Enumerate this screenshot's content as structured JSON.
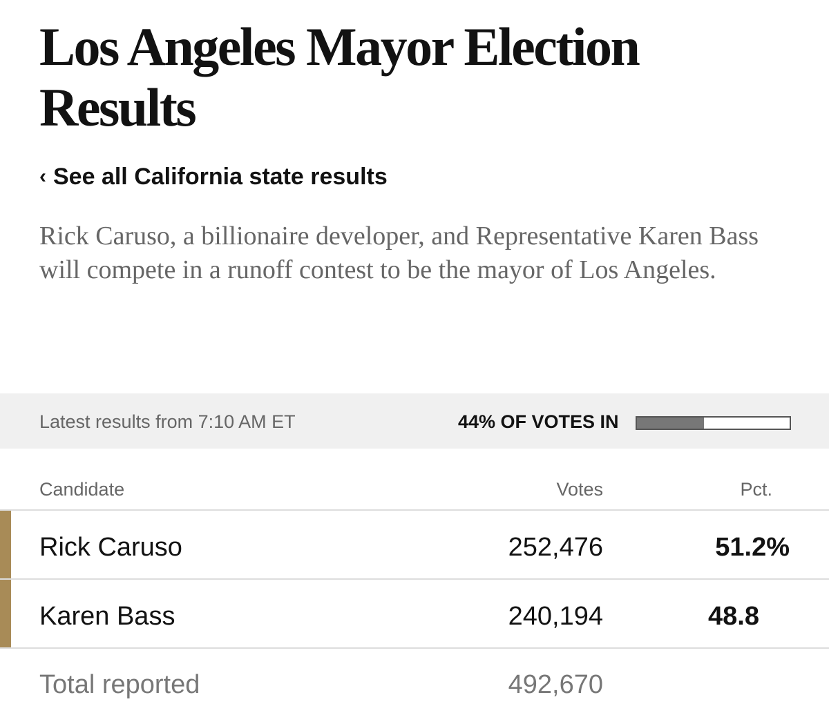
{
  "title": "Los Angeles Mayor Election Results",
  "back_link": {
    "chevron": "‹",
    "label": "See all California state results"
  },
  "summary": "Rick Caruso, a billionaire developer, and Representative Karen Bass will compete in a runoff contest to be the mayor of Los Angeles.",
  "status": {
    "updated": "Latest results from 7:10 AM ET",
    "votes_in_label": "44% of votes in",
    "votes_in_fraction": 0.44
  },
  "table": {
    "headers": {
      "candidate": "Candidate",
      "votes": "Votes",
      "pct": "Pct."
    },
    "rows": [
      {
        "name": "Rick Caruso",
        "votes": "252,476",
        "pct": "51.2%"
      },
      {
        "name": "Karen Bass",
        "votes": "240,194",
        "pct": "48.8"
      }
    ],
    "total": {
      "label": "Total reported",
      "votes": "492,670"
    }
  },
  "colors": {
    "candidate_marker": "#a88b57",
    "progress_fill": "#777777",
    "status_bar_bg": "#f0f0f0"
  }
}
